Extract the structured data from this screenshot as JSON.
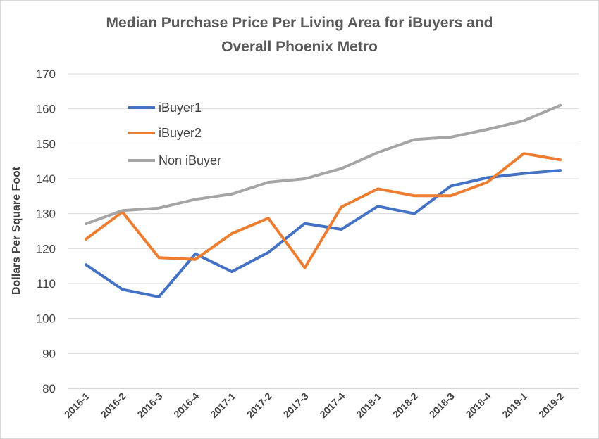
{
  "chart_data": {
    "type": "line",
    "title_lines": [
      "Median Purchase Price Per Living Area for iBuyers and",
      "Overall Phoenix Metro"
    ],
    "xlabel": "",
    "ylabel": "Dollars Per Square Foot",
    "ylim": [
      80,
      170
    ],
    "yticks": [
      80,
      90,
      100,
      110,
      120,
      130,
      140,
      150,
      160,
      170
    ],
    "grid": true,
    "legend_position": "top-left",
    "categories": [
      "2016-1",
      "2016-2",
      "2016-3",
      "2016-4",
      "2017-1",
      "2017-2",
      "2017-3",
      "2017-4",
      "2018-1",
      "2018-2",
      "2018-3",
      "2018-4",
      "2019-1",
      "2019-2"
    ],
    "series": [
      {
        "name": "iBuyer1",
        "color": "#4472c4",
        "values": [
          115.4,
          108.3,
          106.2,
          118.5,
          113.4,
          118.9,
          127.2,
          125.5,
          132.1,
          130.0,
          137.9,
          140.3,
          141.5,
          142.4
        ]
      },
      {
        "name": "iBuyer2",
        "color": "#ed7d31",
        "values": [
          122.7,
          130.5,
          117.4,
          116.9,
          124.3,
          128.7,
          114.5,
          131.9,
          137.1,
          135.1,
          135.1,
          139.0,
          147.2,
          145.4
        ]
      },
      {
        "name": "Non iBuyer",
        "color": "#a5a5a5",
        "values": [
          127.1,
          130.9,
          131.6,
          134.1,
          135.6,
          139.0,
          140.0,
          142.9,
          147.5,
          151.2,
          151.9,
          154.1,
          156.6,
          161.0
        ]
      }
    ]
  }
}
